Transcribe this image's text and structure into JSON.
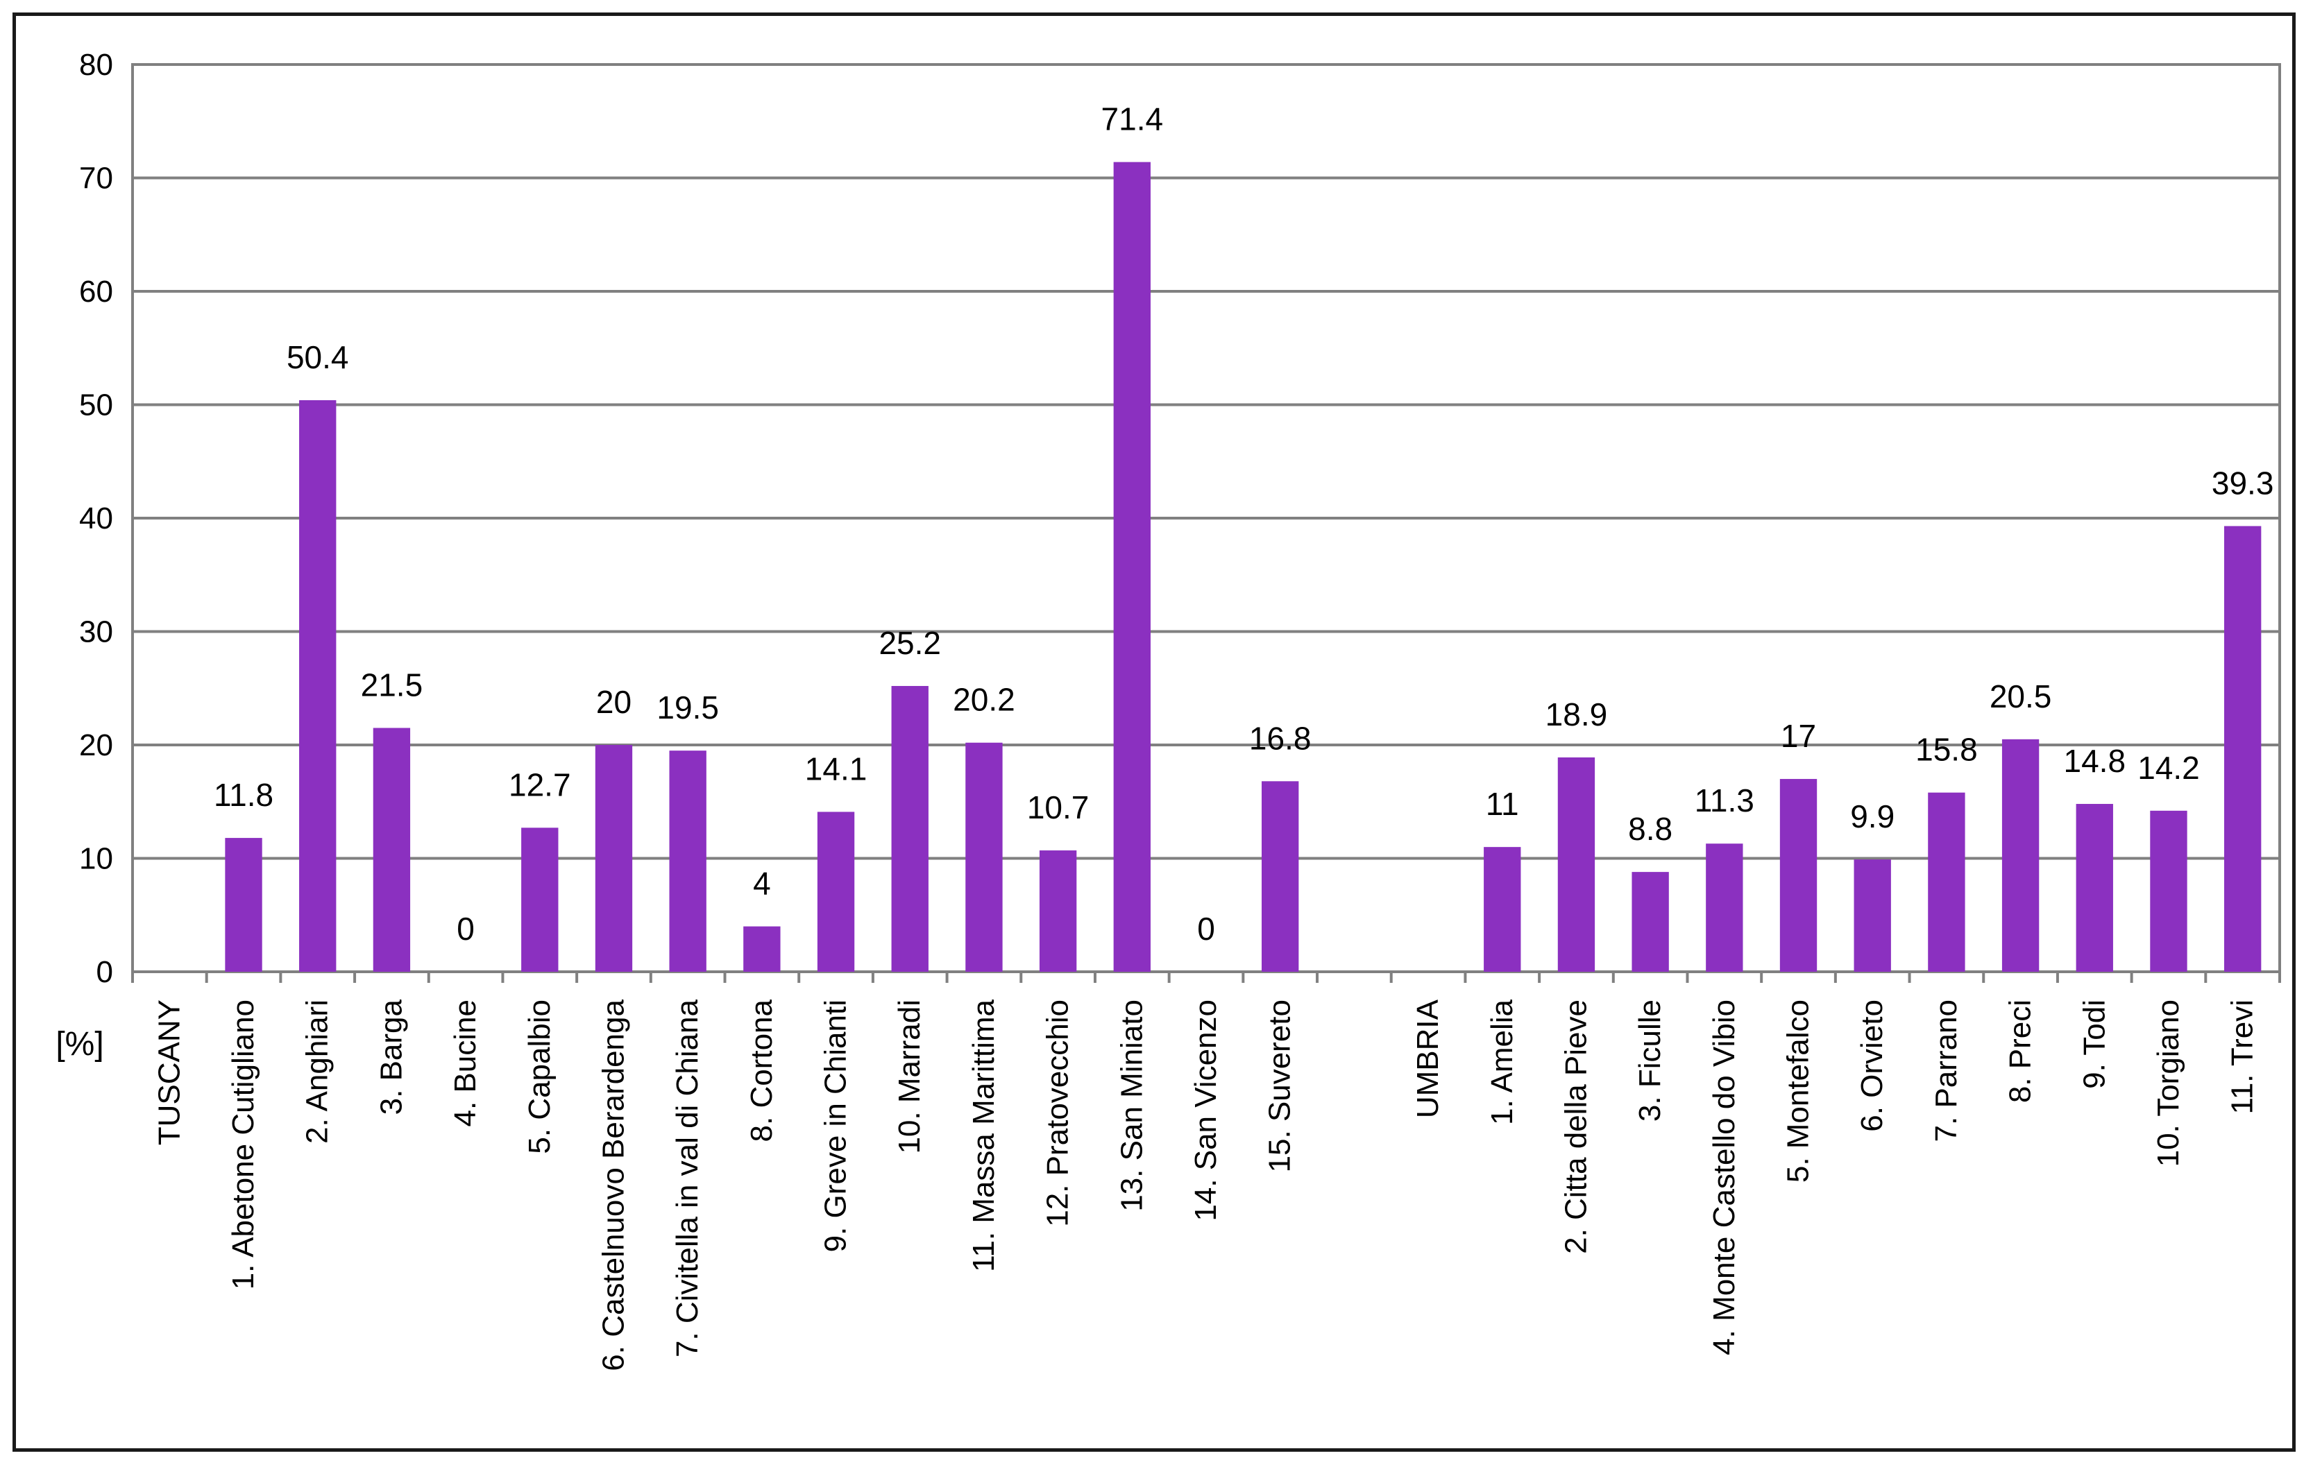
{
  "chart_data": {
    "type": "bar",
    "ylabel": "[%]",
    "ylim": [
      0,
      80
    ],
    "yticks": [
      0,
      10,
      20,
      30,
      40,
      50,
      60,
      70,
      80
    ],
    "grid": true,
    "bar_color": "#8B30C0",
    "categories": [
      "TUSCANY",
      "1. Abetone Cutigliano",
      "2. Anghiari",
      "3. Barga",
      "4. Bucine",
      "5. Capalbio",
      "6. Castelnuovo Berardenga",
      "7. Civitella in val di Chiana",
      "8. Cortona",
      "9. Greve in Chianti",
      "10. Marradi",
      "11. Massa Marittima",
      "12. Pratovecchio",
      "13. San Miniato",
      "14. San Vicenzo",
      "15. Suvereto",
      "",
      "UMBRIA",
      "1. Amelia",
      "2. Citta della Pieve",
      "3. Ficulle",
      "4. Monte Castello do Vibio",
      "5. Montefalco",
      "6. Orvieto",
      "7. Parrano",
      "8. Preci",
      "9. Todi",
      "10. Torgiano",
      "11. Trevi"
    ],
    "values": [
      null,
      11.8,
      50.4,
      21.5,
      0,
      12.7,
      20,
      19.5,
      4,
      14.1,
      25.2,
      20.2,
      10.7,
      71.4,
      0,
      16.8,
      null,
      null,
      11,
      18.9,
      8.8,
      11.3,
      17,
      9.9,
      15.8,
      20.5,
      14.8,
      14.2,
      39.3
    ],
    "data_labels": [
      "",
      "11.8",
      "50.4",
      "21.5",
      "0",
      "12.7",
      "20",
      "19.5",
      "4",
      "14.1",
      "25.2",
      "20.2",
      "10.7",
      "71.4",
      "0",
      "16.8",
      "",
      "",
      "11",
      "18.9",
      "8.8",
      "11.3",
      "17",
      "9.9",
      "15.8",
      "20.5",
      "14.8",
      "14.2",
      "39.3"
    ]
  }
}
